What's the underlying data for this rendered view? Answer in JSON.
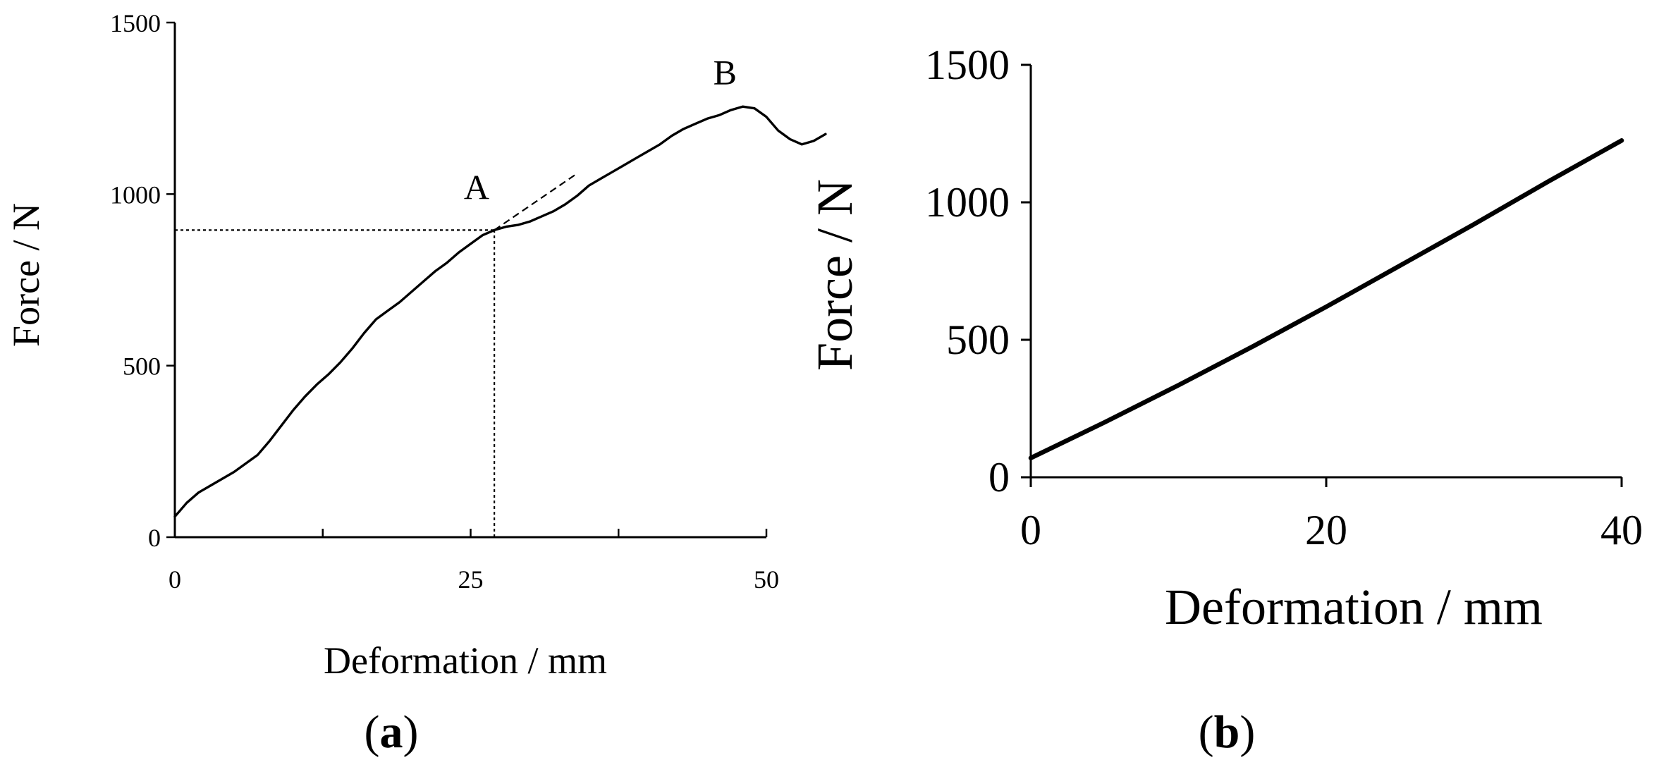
{
  "figure": {
    "panels": [
      {
        "label_open": "(",
        "label_letter": "a",
        "label_close": ")"
      },
      {
        "label_open": "(",
        "label_letter": "b",
        "label_close": ")"
      }
    ]
  },
  "chart_data": [
    {
      "type": "line",
      "xlabel": "Deformation / mm",
      "ylabel": "Force / N",
      "xlim": [
        0,
        50
      ],
      "ylim": [
        0,
        1500
      ],
      "xticks": [
        0,
        25,
        50
      ],
      "xtick_labels": [
        "0",
        "25",
        "50"
      ],
      "yticks": [
        0,
        500,
        1000,
        1500
      ],
      "ytick_labels": [
        "0",
        "500",
        "1000",
        "1500"
      ],
      "grid": false,
      "series": [
        {
          "points": [
            [
              0,
              60
            ],
            [
              1,
              100
            ],
            [
              2,
              130
            ],
            [
              3,
              150
            ],
            [
              5,
              190
            ],
            [
              6,
              215
            ],
            [
              7,
              240
            ],
            [
              8,
              280
            ],
            [
              9,
              325
            ],
            [
              10,
              370
            ],
            [
              11,
              410
            ],
            [
              12,
              445
            ],
            [
              13,
              475
            ],
            [
              14,
              510
            ],
            [
              15,
              550
            ],
            [
              16,
              595
            ],
            [
              17,
              635
            ],
            [
              18,
              660
            ],
            [
              19,
              685
            ],
            [
              20,
              715
            ],
            [
              21,
              745
            ],
            [
              22,
              775
            ],
            [
              23,
              800
            ],
            [
              24,
              830
            ],
            [
              25,
              855
            ],
            [
              26,
              880
            ],
            [
              27,
              895
            ],
            [
              28,
              905
            ],
            [
              29,
              910
            ],
            [
              30,
              920
            ],
            [
              31,
              935
            ],
            [
              32,
              950
            ],
            [
              33,
              970
            ],
            [
              34,
              995
            ],
            [
              35,
              1025
            ],
            [
              36,
              1045
            ],
            [
              37,
              1065
            ],
            [
              38,
              1085
            ],
            [
              39,
              1105
            ],
            [
              40,
              1125
            ],
            [
              41,
              1145
            ],
            [
              42,
              1170
            ],
            [
              43,
              1190
            ],
            [
              44,
              1205
            ],
            [
              45,
              1220
            ],
            [
              46,
              1230
            ],
            [
              47,
              1245
            ],
            [
              48,
              1255
            ],
            [
              49,
              1250
            ],
            [
              50,
              1225
            ],
            [
              51,
              1185
            ],
            [
              52,
              1160
            ],
            [
              53,
              1145
            ],
            [
              54,
              1155
            ],
            [
              55,
              1175
            ]
          ]
        }
      ],
      "reference_lines": [
        {
          "style": "dashed",
          "points": [
            [
              27,
              895
            ],
            [
              34,
              1060
            ]
          ]
        },
        {
          "style": "dotted",
          "points": [
            [
              0,
              895
            ],
            [
              27,
              895
            ]
          ]
        },
        {
          "style": "dotted",
          "points": [
            [
              27,
              0
            ],
            [
              27,
              895
            ]
          ]
        }
      ],
      "annotations": [
        {
          "text": "A",
          "x": 25.5,
          "y": 985
        },
        {
          "text": "B",
          "x": 46.5,
          "y": 1320
        }
      ]
    },
    {
      "type": "line",
      "xlabel": "Deformation / mm",
      "ylabel": "Force / N",
      "xlim": [
        0,
        40
      ],
      "ylim": [
        0,
        1500
      ],
      "xticks": [
        0,
        20,
        40
      ],
      "xtick_labels": [
        "0",
        "20",
        "40"
      ],
      "yticks": [
        0,
        500,
        1000,
        1500
      ],
      "ytick_labels": [
        "0",
        "500",
        "1000",
        "1500"
      ],
      "grid": false,
      "series": [
        {
          "points": [
            [
              0,
              70
            ],
            [
              5,
              200
            ],
            [
              10,
              335
            ],
            [
              15,
              475
            ],
            [
              20,
              620
            ],
            [
              25,
              770
            ],
            [
              30,
              920
            ],
            [
              35,
              1075
            ],
            [
              40,
              1225
            ]
          ]
        }
      ]
    }
  ]
}
